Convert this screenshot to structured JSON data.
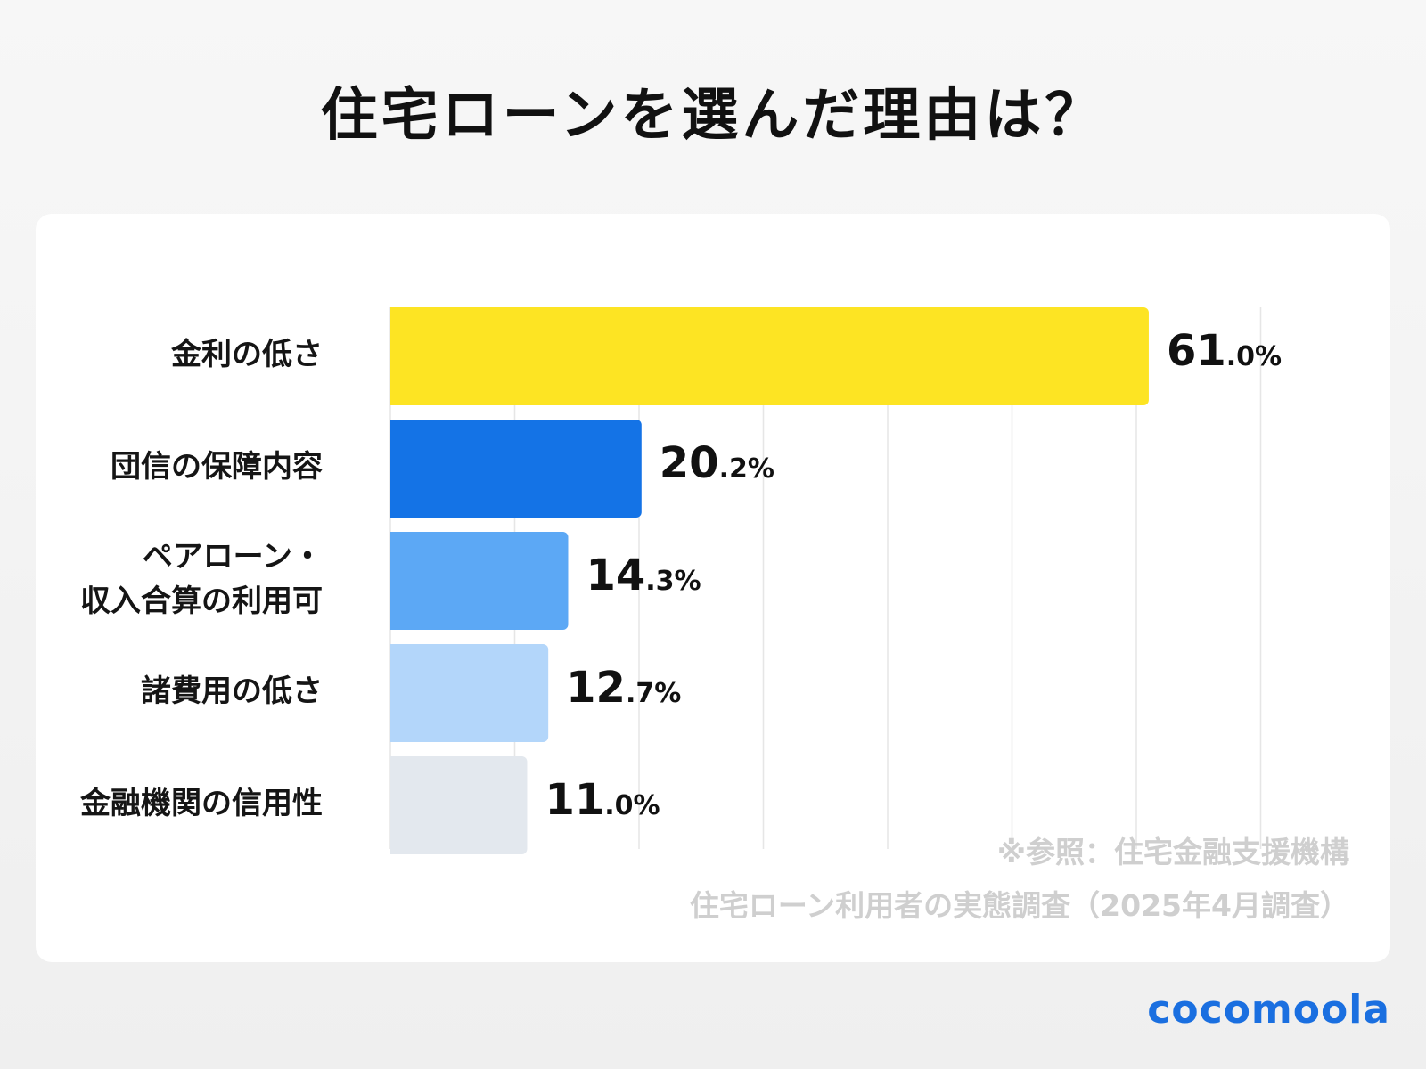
{
  "chart_data": {
    "type": "bar",
    "orientation": "horizontal",
    "title": "住宅ローンを選んだ理由は？",
    "categories": [
      "金利の低さ",
      "団信の保障内容",
      "ペアローン・\n収入合算の利用可",
      "諸費用の低さ",
      "金融機関の信用性"
    ],
    "values": [
      61.0,
      20.2,
      14.3,
      12.7,
      11.0
    ],
    "value_labels": [
      {
        "main": "61",
        "decimal": ".0%"
      },
      {
        "main": "20",
        "decimal": ".2%"
      },
      {
        "main": "14",
        "decimal": ".3%"
      },
      {
        "main": "12",
        "decimal": ".7%"
      },
      {
        "main": "11",
        "decimal": ".0%"
      }
    ],
    "colors": [
      "#fde423",
      "#1473e6",
      "#5ca8f5",
      "#b3d6fa",
      "#e3e8ee"
    ],
    "xlim": [
      0,
      70
    ],
    "grid": true,
    "unit": "%"
  },
  "source": {
    "line1": "※参照：住宅金融支援機構",
    "line2": "住宅ローン利用者の実態調査（2025年4月調査）"
  },
  "brand": {
    "logo_text": "cocomoola",
    "color": "#1a6fe0"
  }
}
